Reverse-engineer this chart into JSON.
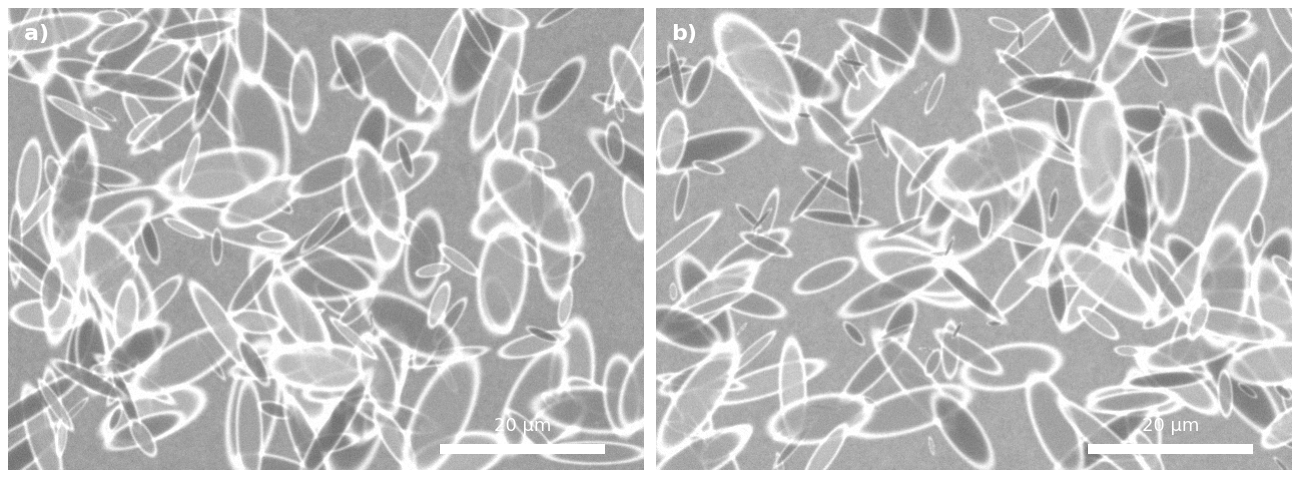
{
  "fig_width": 12.99,
  "fig_height": 4.78,
  "dpi": 100,
  "label_a": "a)",
  "label_b": "b)",
  "scale_text": "20 μm",
  "bg_color": "#ffffff",
  "label_fontsize": 16,
  "scale_fontsize": 13,
  "gap_color": "#ffffff",
  "panel_a_bg": 0.63,
  "panel_b_bg": 0.67,
  "border_width": 8
}
